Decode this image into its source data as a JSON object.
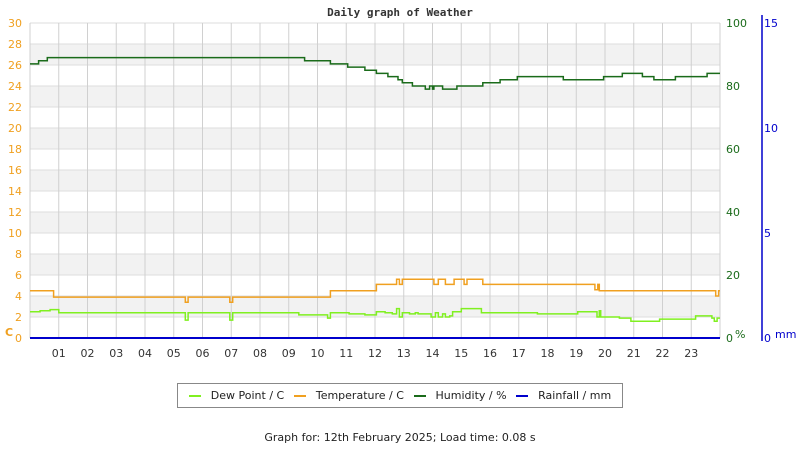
{
  "chart_data": {
    "type": "line",
    "title": "Daily graph of Weather",
    "x_ticks": [
      "01",
      "02",
      "03",
      "04",
      "05",
      "06",
      "07",
      "08",
      "09",
      "10",
      "11",
      "12",
      "13",
      "14",
      "15",
      "16",
      "17",
      "18",
      "19",
      "20",
      "21",
      "22",
      "23"
    ],
    "xlim_hours": [
      0,
      24
    ],
    "left_axis": {
      "label": "C",
      "ticks": [
        0,
        2,
        4,
        6,
        8,
        10,
        12,
        14,
        16,
        18,
        20,
        22,
        24,
        26,
        28,
        30
      ],
      "ylim": [
        0,
        30
      ],
      "color": "#f0a020"
    },
    "right_axis_humidity": {
      "label": "%",
      "ticks": [
        0,
        20,
        40,
        60,
        80,
        100
      ],
      "ylim": [
        0,
        100
      ],
      "color": "#1a6b1a"
    },
    "right_axis_rain": {
      "label": "mm",
      "ticks": [
        0,
        5,
        10,
        15
      ],
      "ylim": [
        0,
        15
      ],
      "color": "#0000cc"
    },
    "grid": true,
    "legend_position": "bottom",
    "series": [
      {
        "name": "Dew Point / C",
        "color": "#80f020",
        "axis": "left",
        "points": [
          [
            0,
            2.5
          ],
          [
            0.35,
            2.6
          ],
          [
            0.7,
            2.7
          ],
          [
            1.0,
            2.4
          ],
          [
            5.35,
            2.4
          ],
          [
            5.4,
            1.7
          ],
          [
            5.5,
            2.4
          ],
          [
            6.9,
            2.4
          ],
          [
            6.95,
            1.7
          ],
          [
            7.05,
            2.4
          ],
          [
            9.3,
            2.4
          ],
          [
            9.35,
            2.2
          ],
          [
            10.3,
            2.2
          ],
          [
            10.35,
            1.9
          ],
          [
            10.45,
            2.4
          ],
          [
            11.05,
            2.4
          ],
          [
            11.1,
            2.3
          ],
          [
            11.6,
            2.3
          ],
          [
            11.65,
            2.2
          ],
          [
            12.0,
            2.2
          ],
          [
            12.05,
            2.5
          ],
          [
            12.35,
            2.4
          ],
          [
            12.6,
            2.3
          ],
          [
            12.75,
            2.8
          ],
          [
            12.85,
            2.0
          ],
          [
            12.95,
            2.4
          ],
          [
            13.2,
            2.3
          ],
          [
            13.4,
            2.4
          ],
          [
            13.5,
            2.3
          ],
          [
            13.9,
            2.3
          ],
          [
            13.95,
            2.0
          ],
          [
            14.1,
            2.4
          ],
          [
            14.2,
            2.0
          ],
          [
            14.35,
            2.3
          ],
          [
            14.45,
            2.0
          ],
          [
            14.6,
            2.1
          ],
          [
            14.7,
            2.5
          ],
          [
            15.0,
            2.8
          ],
          [
            15.7,
            2.4
          ],
          [
            17.6,
            2.4
          ],
          [
            17.65,
            2.3
          ],
          [
            19.0,
            2.3
          ],
          [
            19.05,
            2.5
          ],
          [
            19.7,
            2.5
          ],
          [
            19.72,
            2.0
          ],
          [
            19.8,
            2.6
          ],
          [
            19.85,
            2.0
          ],
          [
            20.5,
            1.9
          ],
          [
            20.9,
            1.6
          ],
          [
            21.85,
            1.6
          ],
          [
            21.9,
            1.8
          ],
          [
            23.1,
            1.8
          ],
          [
            23.15,
            2.1
          ],
          [
            23.7,
            2.1
          ],
          [
            23.72,
            1.9
          ],
          [
            23.8,
            1.6
          ],
          [
            23.9,
            1.9
          ],
          [
            24,
            1.9
          ]
        ]
      },
      {
        "name": "Temperature / C",
        "color": "#f0a020",
        "axis": "left",
        "points": [
          [
            0,
            4.5
          ],
          [
            0.8,
            4.5
          ],
          [
            0.82,
            3.9
          ],
          [
            5.35,
            3.9
          ],
          [
            5.4,
            3.4
          ],
          [
            5.5,
            3.9
          ],
          [
            6.9,
            3.9
          ],
          [
            6.95,
            3.4
          ],
          [
            7.05,
            3.9
          ],
          [
            10.35,
            3.9
          ],
          [
            10.45,
            4.5
          ],
          [
            12.0,
            4.5
          ],
          [
            12.05,
            5.1
          ],
          [
            12.7,
            5.1
          ],
          [
            12.75,
            5.6
          ],
          [
            12.85,
            5.1
          ],
          [
            12.95,
            5.6
          ],
          [
            14.0,
            5.6
          ],
          [
            14.05,
            5.1
          ],
          [
            14.2,
            5.6
          ],
          [
            14.4,
            5.6
          ],
          [
            14.45,
            5.1
          ],
          [
            14.75,
            5.6
          ],
          [
            15.05,
            5.6
          ],
          [
            15.1,
            5.1
          ],
          [
            15.2,
            5.6
          ],
          [
            15.7,
            5.6
          ],
          [
            15.75,
            5.1
          ],
          [
            19.6,
            5.1
          ],
          [
            19.65,
            4.6
          ],
          [
            19.75,
            5.1
          ],
          [
            19.8,
            4.5
          ],
          [
            23.8,
            4.5
          ],
          [
            23.85,
            4.0
          ],
          [
            23.95,
            4.5
          ],
          [
            24,
            4.5
          ]
        ]
      },
      {
        "name": "Humidity / %",
        "color": "#1a6b1a",
        "axis": "humidity",
        "points": [
          [
            0,
            87
          ],
          [
            0.3,
            88
          ],
          [
            0.6,
            89
          ],
          [
            9.5,
            89
          ],
          [
            9.55,
            88
          ],
          [
            10.4,
            88
          ],
          [
            10.45,
            87
          ],
          [
            11.0,
            87
          ],
          [
            11.05,
            86
          ],
          [
            11.6,
            86
          ],
          [
            11.65,
            85
          ],
          [
            12.0,
            85
          ],
          [
            12.05,
            84
          ],
          [
            12.4,
            84
          ],
          [
            12.45,
            83
          ],
          [
            12.7,
            83
          ],
          [
            12.8,
            82
          ],
          [
            12.95,
            81
          ],
          [
            13.25,
            81
          ],
          [
            13.3,
            80
          ],
          [
            13.7,
            80
          ],
          [
            13.75,
            79
          ],
          [
            13.9,
            80
          ],
          [
            14.0,
            79
          ],
          [
            14.05,
            80
          ],
          [
            14.3,
            80
          ],
          [
            14.35,
            79
          ],
          [
            14.8,
            79
          ],
          [
            14.85,
            80
          ],
          [
            15.7,
            80
          ],
          [
            15.75,
            81
          ],
          [
            16.3,
            81
          ],
          [
            16.35,
            82
          ],
          [
            16.9,
            82
          ],
          [
            16.95,
            83
          ],
          [
            18.5,
            83
          ],
          [
            18.55,
            82
          ],
          [
            19.9,
            82
          ],
          [
            19.95,
            83
          ],
          [
            20.55,
            83
          ],
          [
            20.6,
            84
          ],
          [
            21.25,
            84
          ],
          [
            21.3,
            83
          ],
          [
            21.65,
            83
          ],
          [
            21.7,
            82
          ],
          [
            22.4,
            82
          ],
          [
            22.45,
            83
          ],
          [
            23.5,
            83
          ],
          [
            23.55,
            84
          ],
          [
            23.95,
            84
          ],
          [
            24,
            84
          ]
        ],
        "display_hint": "humidity ranges ~79% to 89% over the day"
      },
      {
        "name": "Rainfall / mm",
        "color": "#0000cc",
        "axis": "rain",
        "points": [
          [
            0,
            0
          ],
          [
            24,
            0
          ]
        ]
      }
    ],
    "footer": "Graph for: 12th February 2025; Load time: 0.08 s"
  },
  "header": {
    "title": "Daily graph of Weather"
  },
  "axes": {
    "left_unit": "C",
    "humidity_unit": "%",
    "rain_unit": "mm"
  },
  "legend": [
    {
      "label": "Dew Point / C",
      "color": "#80f020"
    },
    {
      "label": "Temperature / C",
      "color": "#f0a020"
    },
    {
      "label": "Humidity / %",
      "color": "#1a6b1a"
    },
    {
      "label": "Rainfall / mm",
      "color": "#0000cc"
    }
  ],
  "footer": {
    "text": "Graph for: 12th February 2025; Load time: 0.08 s"
  }
}
